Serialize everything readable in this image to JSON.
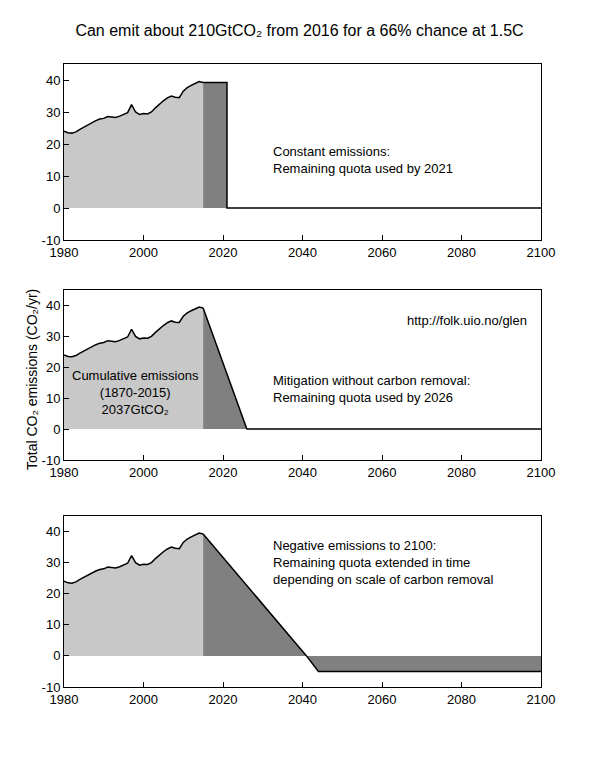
{
  "title": "Can emit about 210GtCO₂ from 2016 for a 66% chance at 1.5C",
  "y_label": "Total CO₂ emissions (CO₂/yr)",
  "chart_data": [
    {
      "type": "area",
      "xlim": [
        1980,
        2100
      ],
      "xticks": [
        1980,
        2000,
        2020,
        2040,
        2060,
        2080,
        2100
      ],
      "ylim": [
        -10,
        45
      ],
      "yticks": [
        -10,
        0,
        10,
        20,
        30,
        40
      ],
      "grid": false,
      "series": [
        {
          "color": "#c8c8c8",
          "x": [
            1980,
            1981,
            1982,
            1983,
            1984,
            1985,
            1986,
            1987,
            1988,
            1989,
            1990,
            1991,
            1992,
            1993,
            1994,
            1995,
            1996,
            1997,
            1998,
            1999,
            2000,
            2001,
            2002,
            2003,
            2004,
            2005,
            2006,
            2007,
            2008,
            2009,
            2010,
            2011,
            2012,
            2013,
            2014,
            2015
          ],
          "values": [
            24.0,
            23.5,
            23.4,
            23.8,
            24.6,
            25.3,
            26.0,
            26.6,
            27.3,
            27.8,
            28.0,
            28.6,
            28.4,
            28.3,
            28.7,
            29.2,
            29.8,
            32.3,
            30.0,
            29.2,
            29.5,
            29.4,
            30.0,
            31.3,
            32.5,
            33.5,
            34.4,
            35.0,
            34.6,
            34.5,
            36.5,
            37.6,
            38.3,
            39.0,
            39.5,
            39.2
          ]
        },
        {
          "color": "#808080",
          "x": [
            2015,
            2021,
            2021,
            2100
          ],
          "values": [
            39.2,
            39.2,
            0,
            0
          ]
        }
      ],
      "annotations": [
        [
          "Constant emissions:",
          "Remaining quota used by 2021"
        ]
      ]
    },
    {
      "type": "area",
      "xlim": [
        1980,
        2100
      ],
      "xticks": [
        1980,
        2000,
        2020,
        2040,
        2060,
        2080,
        2100
      ],
      "ylim": [
        -10,
        45
      ],
      "yticks": [
        -10,
        0,
        10,
        20,
        30,
        40
      ],
      "grid": false,
      "series": [
        {
          "color": "#c8c8c8",
          "x": [
            1980,
            1981,
            1982,
            1983,
            1984,
            1985,
            1986,
            1987,
            1988,
            1989,
            1990,
            1991,
            1992,
            1993,
            1994,
            1995,
            1996,
            1997,
            1998,
            1999,
            2000,
            2001,
            2002,
            2003,
            2004,
            2005,
            2006,
            2007,
            2008,
            2009,
            2010,
            2011,
            2012,
            2013,
            2014,
            2015
          ],
          "values": [
            24.0,
            23.5,
            23.4,
            23.8,
            24.6,
            25.3,
            26.0,
            26.6,
            27.3,
            27.8,
            28.0,
            28.6,
            28.4,
            28.3,
            28.7,
            29.2,
            29.8,
            32.3,
            30.0,
            29.2,
            29.5,
            29.4,
            30.0,
            31.3,
            32.5,
            33.5,
            34.4,
            35.0,
            34.6,
            34.5,
            36.5,
            37.6,
            38.3,
            39.0,
            39.5,
            39.2
          ]
        },
        {
          "color": "#808080",
          "x": [
            2015,
            2026,
            2100
          ],
          "values": [
            39.2,
            0,
            0
          ]
        }
      ],
      "annotations": [
        [
          "http://folk.uio.no/glen"
        ],
        [
          "Mitigation without carbon removal:",
          "Remaining quota used by 2026"
        ],
        [
          "Cumulative emissions",
          "(1870-2015)",
          "2037GtCO₂"
        ]
      ]
    },
    {
      "type": "area",
      "xlim": [
        1980,
        2100
      ],
      "xticks": [
        1980,
        2000,
        2020,
        2040,
        2060,
        2080,
        2100
      ],
      "ylim": [
        -10,
        45
      ],
      "yticks": [
        -10,
        0,
        10,
        20,
        30,
        40
      ],
      "grid": false,
      "series": [
        {
          "color": "#c8c8c8",
          "x": [
            1980,
            1981,
            1982,
            1983,
            1984,
            1985,
            1986,
            1987,
            1988,
            1989,
            1990,
            1991,
            1992,
            1993,
            1994,
            1995,
            1996,
            1997,
            1998,
            1999,
            2000,
            2001,
            2002,
            2003,
            2004,
            2005,
            2006,
            2007,
            2008,
            2009,
            2010,
            2011,
            2012,
            2013,
            2014,
            2015
          ],
          "values": [
            24.0,
            23.5,
            23.4,
            23.8,
            24.6,
            25.3,
            26.0,
            26.6,
            27.3,
            27.8,
            28.0,
            28.6,
            28.4,
            28.3,
            28.7,
            29.2,
            29.8,
            32.3,
            30.0,
            29.2,
            29.5,
            29.4,
            30.0,
            31.3,
            32.5,
            33.5,
            34.4,
            35.0,
            34.6,
            34.5,
            36.5,
            37.6,
            38.3,
            39.0,
            39.5,
            39.2
          ]
        },
        {
          "color": "#808080",
          "x": [
            2015,
            2041,
            2044,
            2100
          ],
          "values": [
            39.2,
            0,
            -5,
            -5
          ]
        }
      ],
      "annotations": [
        [
          "Negative emissions to 2100:",
          "Remaining quota extended in time",
          "depending on scale of carbon removal"
        ]
      ]
    }
  ]
}
